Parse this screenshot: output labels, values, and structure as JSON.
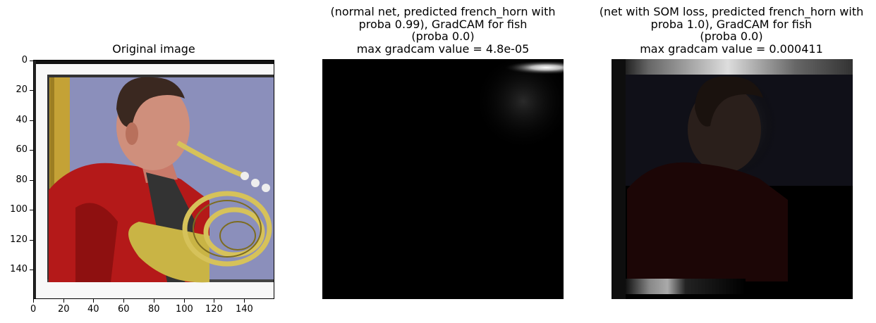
{
  "panels": [
    {
      "title_lines": [
        "Original image"
      ],
      "content": "photo: man in red shirt playing a french horn"
    },
    {
      "title_lines": [
        "(normal net, predicted french_horn with",
        "proba 0.99), GradCAM for fish",
        "(proba 0.0)",
        "max gradcam value = 4.8e-05"
      ],
      "content": "gradcam heatmap"
    },
    {
      "title_lines": [
        "(net with SOM loss, predicted french_horn with",
        "proba 1.0), GradCAM for fish",
        "(proba 0.0)",
        "max gradcam value = 0.000411"
      ],
      "content": "gradcam heatmap"
    }
  ],
  "axes": {
    "x_ticks": [
      "0",
      "20",
      "40",
      "60",
      "80",
      "100",
      "120",
      "140"
    ],
    "y_ticks": [
      "0",
      "20",
      "40",
      "60",
      "80",
      "100",
      "120",
      "140"
    ],
    "xlim": [
      0,
      160
    ],
    "ylim": [
      0,
      160
    ]
  },
  "colors": {
    "shirt": "#b81a1a",
    "horn": "#c8b040",
    "background_wall": "#8a8fb8",
    "curtain": "#c9a93a"
  }
}
